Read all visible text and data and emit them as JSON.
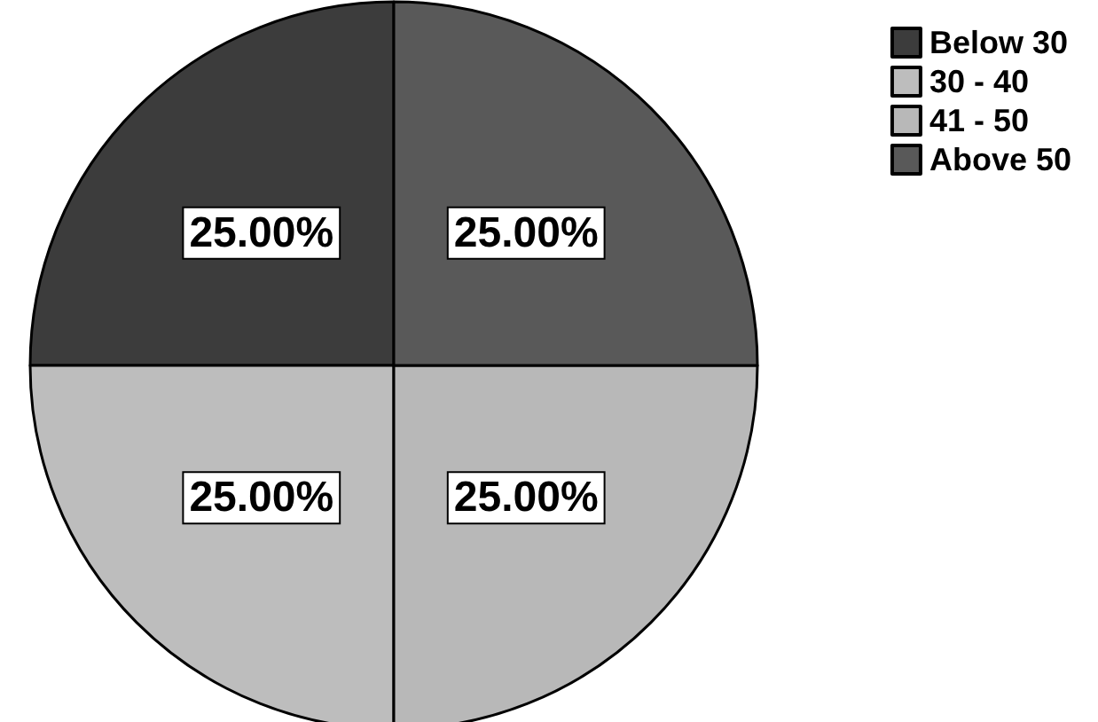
{
  "chart_data": {
    "type": "pie",
    "categories": [
      "Below 30",
      "30 - 40",
      "41 - 50",
      "Above 50"
    ],
    "values": [
      25,
      25,
      25,
      25
    ],
    "colors": [
      "#3c3c3c",
      "#bdbdbd",
      "#b8b8b8",
      "#595959"
    ],
    "value_labels": [
      "25.00%",
      "25.00%",
      "25.00%",
      "25.00%"
    ],
    "legend": "top right"
  }
}
